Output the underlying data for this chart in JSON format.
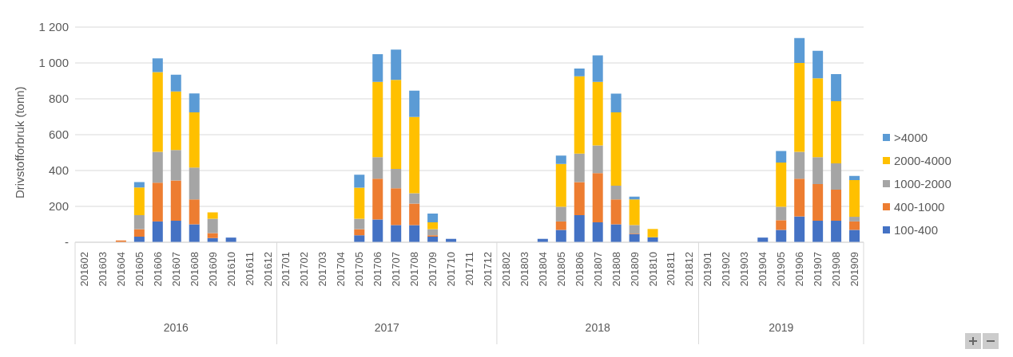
{
  "chart_data": {
    "type": "bar",
    "stacked": true,
    "ylabel": "Drivstofforbruk (tonn)",
    "categories": [
      "201602",
      "201603",
      "201604",
      "201605",
      "201606",
      "201607",
      "201608",
      "201609",
      "201610",
      "201611",
      "201612",
      "201701",
      "201702",
      "201703",
      "201704",
      "201705",
      "201706",
      "201707",
      "201708",
      "201709",
      "201710",
      "201711",
      "201712",
      "201802",
      "201803",
      "201804",
      "201805",
      "201806",
      "201807",
      "201808",
      "201809",
      "201810",
      "201811",
      "201812",
      "201901",
      "201902",
      "201903",
      "201904",
      "201905",
      "201906",
      "201907",
      "201908",
      "201909"
    ],
    "series": [
      {
        "name": "100-400",
        "color": "#4472c4",
        "values": [
          0,
          0,
          0,
          31,
          116,
          120,
          100,
          23,
          26,
          0,
          0,
          0,
          0,
          0,
          0,
          39,
          127,
          96,
          96,
          31,
          19,
          0,
          0,
          0,
          0,
          19,
          69,
          151,
          111,
          100,
          46,
          28,
          0,
          0,
          0,
          0,
          0,
          26,
          69,
          144,
          120,
          120,
          69
        ]
      },
      {
        "name": "400-1000",
        "color": "#ed7d31",
        "values": [
          0,
          0,
          10,
          42,
          216,
          224,
          139,
          28,
          0,
          0,
          0,
          0,
          0,
          0,
          0,
          34,
          228,
          205,
          120,
          8,
          0,
          0,
          0,
          0,
          0,
          0,
          47,
          185,
          275,
          139,
          3,
          0,
          0,
          0,
          0,
          0,
          0,
          0,
          54,
          211,
          204,
          173,
          47
        ]
      },
      {
        "name": "1000-2000",
        "color": "#a5a5a5",
        "values": [
          0,
          0,
          0,
          78,
          173,
          171,
          178,
          80,
          0,
          0,
          0,
          0,
          0,
          0,
          0,
          58,
          120,
          108,
          57,
          34,
          0,
          0,
          0,
          0,
          0,
          0,
          82,
          158,
          154,
          77,
          47,
          0,
          0,
          0,
          0,
          0,
          0,
          0,
          75,
          150,
          150,
          147,
          26
        ]
      },
      {
        "name": "2000-4000",
        "color": "#ffc000",
        "values": [
          0,
          0,
          0,
          155,
          444,
          326,
          308,
          36,
          0,
          0,
          0,
          0,
          0,
          0,
          0,
          173,
          420,
          497,
          426,
          38,
          0,
          0,
          0,
          0,
          0,
          0,
          239,
          432,
          355,
          409,
          143,
          46,
          0,
          0,
          0,
          0,
          0,
          0,
          246,
          495,
          441,
          347,
          205
        ]
      },
      {
        "name": ">4000",
        "color": "#5b9bd5",
        "values": [
          0,
          0,
          0,
          30,
          77,
          93,
          105,
          0,
          0,
          0,
          0,
          0,
          0,
          0,
          0,
          73,
          154,
          168,
          147,
          49,
          0,
          0,
          0,
          0,
          0,
          0,
          46,
          43,
          147,
          104,
          16,
          0,
          0,
          0,
          0,
          0,
          0,
          0,
          65,
          139,
          153,
          151,
          23
        ]
      }
    ],
    "ylim": [
      0,
      1200
    ],
    "yticks": [
      {
        "value": 0,
        "label": "-"
      },
      200,
      400,
      600,
      800,
      {
        "value": 1000,
        "label": "1 000"
      },
      {
        "value": 1200,
        "label": "1 200"
      }
    ],
    "grid": "y",
    "legend": "right",
    "annotations": [
      "2016",
      "2017",
      "2018",
      "2019"
    ]
  }
}
